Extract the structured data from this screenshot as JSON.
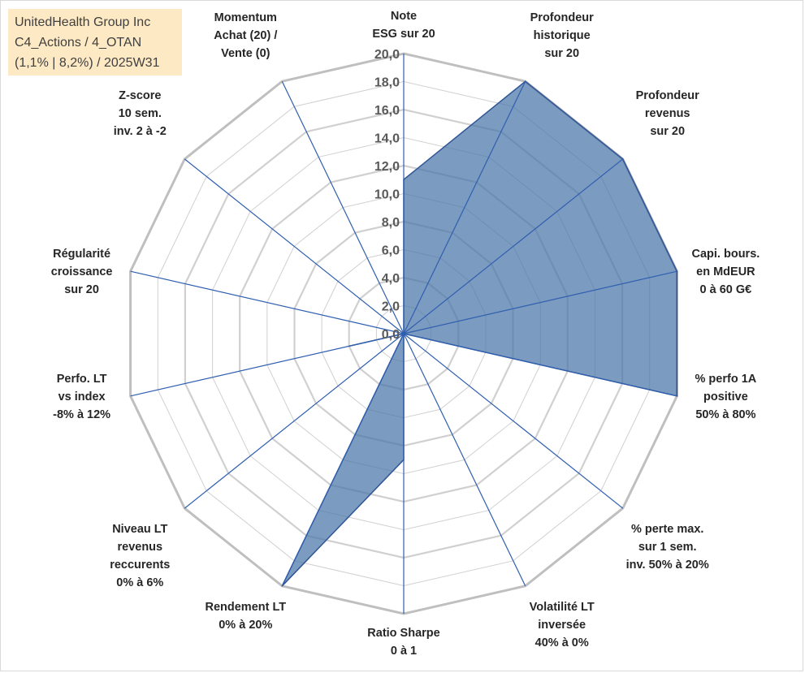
{
  "title_box": {
    "line1": "UnitedHealth Group Inc",
    "line2": "C4_Actions / 4_OTAN",
    "line3": "(1,1% | 8,2%) / 2025W31"
  },
  "chart_data": {
    "type": "radar",
    "rmin": 0,
    "rmax": 20,
    "ticks": [
      "0,0",
      "2,0",
      "4,0",
      "6,0",
      "8,0",
      "10,0",
      "12,0",
      "14,0",
      "16,0",
      "18,0",
      "20,0"
    ],
    "axes": [
      [
        "Note",
        "ESG sur 20"
      ],
      [
        "Profondeur",
        "historique",
        "sur 20"
      ],
      [
        "Profondeur",
        "revenus",
        "sur 20"
      ],
      [
        "Capi. bours.",
        "en MdEUR",
        "0 à 60 G€"
      ],
      [
        "% perfo 1A",
        "positive",
        "50% à 80%"
      ],
      [
        "% perte max.",
        "sur 1 sem.",
        "inv. 50% à 20%"
      ],
      [
        "Volatilité LT",
        "inversée",
        "40% à 0%"
      ],
      [
        "Ratio Sharpe",
        "0 à 1"
      ],
      [
        "Rendement LT",
        "0% à 20%"
      ],
      [
        "Niveau LT",
        "revenus",
        "reccurents",
        "0% à 6%"
      ],
      [
        "Perfo. LT",
        "vs index",
        "-8% à 12%"
      ],
      [
        "Régularité",
        "croissance",
        "sur 20"
      ],
      [
        "Z-score",
        "10 sem.",
        "inv. 2 à -2"
      ],
      [
        "Momentum",
        "Achat (20) /",
        "Vente (0)"
      ]
    ],
    "series": [
      {
        "values": [
          11,
          20,
          20,
          20,
          20,
          0,
          0,
          9,
          20,
          0,
          4,
          0,
          0,
          0
        ],
        "fill_color": "#4a74a8",
        "fill_opacity": 0.72,
        "line_color": "#2f5597"
      }
    ],
    "grid_color": "#d0d0d0",
    "outer_ring_color": "#bfbfbf",
    "spoke_color": "#2f5fb0",
    "grid": true
  }
}
